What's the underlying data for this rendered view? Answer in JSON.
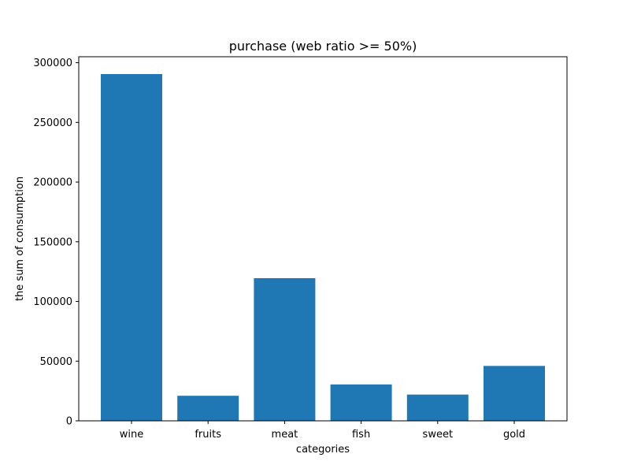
{
  "chart_data": {
    "type": "bar",
    "title": "purchase (web ratio >= 50%)",
    "xlabel": "categories",
    "ylabel": "the sum of consumption",
    "categories": [
      "wine",
      "fruits",
      "meat",
      "fish",
      "sweet",
      "gold"
    ],
    "values": [
      290500,
      21000,
      119500,
      30500,
      22000,
      46000
    ],
    "ylim": [
      0,
      305000
    ],
    "yticks": [
      0,
      50000,
      100000,
      150000,
      200000,
      250000,
      300000
    ],
    "grid": false,
    "legend": "none",
    "bar_color": "#1f77b4"
  }
}
